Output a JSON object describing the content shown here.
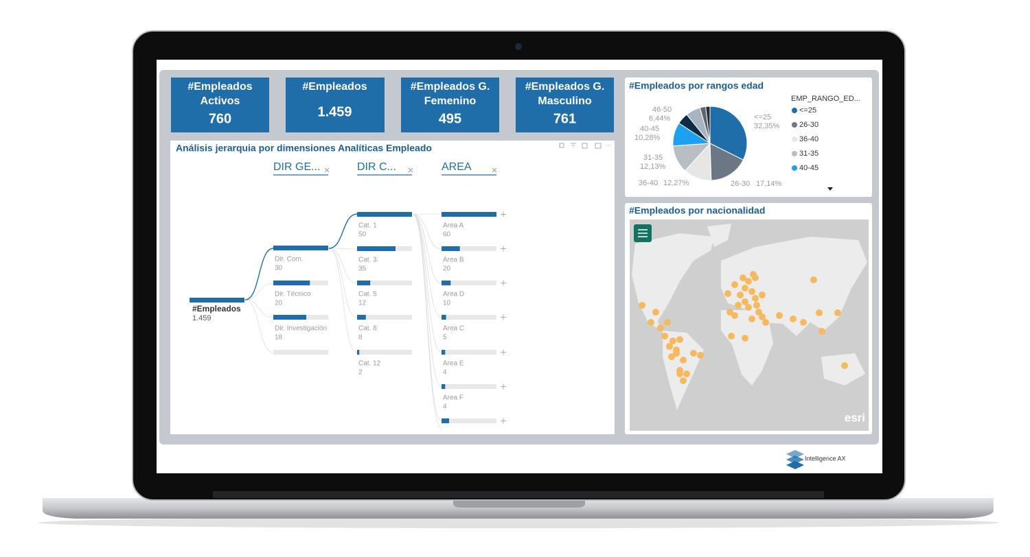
{
  "kpis": [
    {
      "title_lines": [
        "#Empleados",
        "Activos"
      ],
      "value": "760"
    },
    {
      "title_lines": [
        "#Empleados"
      ],
      "value": "1.459"
    },
    {
      "title_lines": [
        "#Empleados G.",
        "Femenino"
      ],
      "value": "495"
    },
    {
      "title_lines": [
        "#Empleados G.",
        "Masculino"
      ],
      "value": "761"
    }
  ],
  "decomposition_tree": {
    "title": "Análisis jerarquia por dimensiones Analíticas Empleado",
    "level_headers": [
      "DIR GE...",
      "DIR C...",
      "AREA"
    ],
    "root": {
      "label": "#Empleados",
      "value": "1.459"
    },
    "levels": [
      [
        {
          "label": "Dir. Com.",
          "value": 30
        },
        {
          "label": "Dir. Técnico",
          "value": 20
        },
        {
          "label": "Dir. Investigación",
          "value": 18
        }
      ],
      [
        {
          "label": "Cat. 1",
          "value": 50
        },
        {
          "label": "Cat. 3.",
          "value": 35
        },
        {
          "label": "Cat. 5",
          "value": 12
        },
        {
          "label": "Cat. 8",
          "value": 8
        },
        {
          "label": "Cat. 12",
          "value": 2
        }
      ],
      [
        {
          "label": "Area A",
          "value": 60
        },
        {
          "label": "Area B",
          "value": 20
        },
        {
          "label": "Area D",
          "value": 10
        },
        {
          "label": "Area C",
          "value": 5
        },
        {
          "label": "Area E",
          "value": 4
        },
        {
          "label": "Area F",
          "value": 4
        }
      ]
    ]
  },
  "chart_data": {
    "type": "pie",
    "title": "#Empleados por rangos edad",
    "legend_title": "EMP_RANGO_ED...",
    "legend": "right",
    "categories": [
      "<=25",
      "26-30",
      "36-40",
      "31-35",
      "40-45",
      null,
      "46-50",
      null,
      null
    ],
    "values": [
      32.35,
      17.14,
      12.27,
      12.13,
      10.28,
      5.0,
      6.44,
      2.5,
      1.89
    ],
    "value_labels": [
      "32,35%",
      "17,14%",
      "12,27%",
      "12,13%",
      "10,28%",
      null,
      "6,44%",
      null,
      null
    ],
    "colors": [
      "#1f6eaa",
      "#6b7784",
      "#e6e6e6",
      "#b9bec3",
      "#1ea0f0",
      "#0f2a45",
      "#a6b4c4",
      "#5d6670",
      "#2b2f33"
    ]
  },
  "map": {
    "title": "#Empleados por nacionalidad",
    "attribution": "esri"
  },
  "footer": {
    "brand": "Intelligence AX"
  }
}
